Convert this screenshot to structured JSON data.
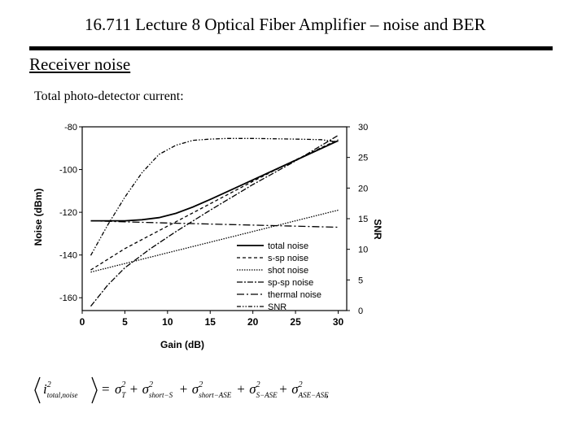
{
  "slide": {
    "title": "16.711 Lecture 8 Optical Fiber Amplifier – noise and BER",
    "subtitle": "Receiver noise",
    "caption": "Total photo-detector current:"
  },
  "chart_data": {
    "type": "line",
    "xlabel": "Gain (dB)",
    "ylabel": "Noise (dBm)",
    "y2label": "SNR",
    "xlim": [
      0,
      31
    ],
    "ylim": [
      -166,
      -80
    ],
    "y2lim": [
      0,
      30
    ],
    "xticks": [
      0,
      5,
      10,
      15,
      20,
      25,
      30
    ],
    "yticks": [
      -80,
      -100,
      -120,
      -140,
      -160
    ],
    "y2ticks": [
      30,
      25,
      20,
      15,
      10,
      5,
      0
    ],
    "legend_position": "bottom-right",
    "series": [
      {
        "name": "total noise",
        "axis": "left",
        "dash": "",
        "x": [
          1,
          3,
          5,
          7,
          9,
          11,
          13,
          15,
          18,
          21,
          24,
          27,
          30
        ],
        "y": [
          -124,
          -124,
          -124,
          -123.5,
          -122.5,
          -120.5,
          -117.5,
          -114,
          -108.5,
          -103,
          -97.5,
          -92,
          -86.5
        ]
      },
      {
        "name": "s-sp noise",
        "axis": "left",
        "dash": "4,3",
        "x": [
          1,
          5,
          10,
          15,
          20,
          25,
          30
        ],
        "y": [
          -147,
          -137,
          -126.5,
          -116,
          -105.5,
          -95.5,
          -86
        ]
      },
      {
        "name": "shot noise",
        "axis": "left",
        "dash": "1.5,1.5",
        "x": [
          1,
          5,
          10,
          15,
          20,
          25,
          30
        ],
        "y": [
          -148,
          -144,
          -139,
          -134,
          -129,
          -124,
          -119
        ]
      },
      {
        "name": "sp-sp noise",
        "axis": "left",
        "dash": "7,2,2,2",
        "x": [
          1,
          3,
          5,
          8,
          11,
          15,
          20,
          25,
          30
        ],
        "y": [
          -164,
          -154,
          -146,
          -137,
          -129,
          -119,
          -107,
          -96,
          -84
        ]
      },
      {
        "name": "thermal noise",
        "axis": "left",
        "dash": "9,3,2,3",
        "x": [
          1,
          5,
          10,
          15,
          20,
          25,
          30
        ],
        "y": [
          -124,
          -124.5,
          -125,
          -125.5,
          -126,
          -126.5,
          -127
        ]
      },
      {
        "name": "SNR",
        "axis": "right",
        "dash": "5,2,1.5,2,1.5,2",
        "x": [
          1,
          3,
          5,
          7,
          9,
          11,
          13,
          15,
          17,
          20,
          25,
          28,
          30
        ],
        "y": [
          9,
          14,
          18.5,
          22.5,
          25.5,
          27,
          27.8,
          28,
          28.1,
          28.1,
          28,
          27.9,
          27.5
        ]
      }
    ]
  },
  "formula": {
    "lhs": "i",
    "lhs_exp": "2",
    "lhs_sub": "total,noise",
    "eq": "=",
    "terms": [
      {
        "sym": "σ",
        "sup": "2",
        "sub": "T"
      },
      {
        "sym": "σ",
        "sup": "2",
        "sub": "short−S"
      },
      {
        "sym": "σ",
        "sup": "2",
        "sub": "short−ASE"
      },
      {
        "sym": "σ",
        "sup": "2",
        "sub": "S−ASE"
      },
      {
        "sym": "σ",
        "sup": "2",
        "sub": "ASE−ASE"
      }
    ],
    "plus": "+",
    "trail": ","
  }
}
